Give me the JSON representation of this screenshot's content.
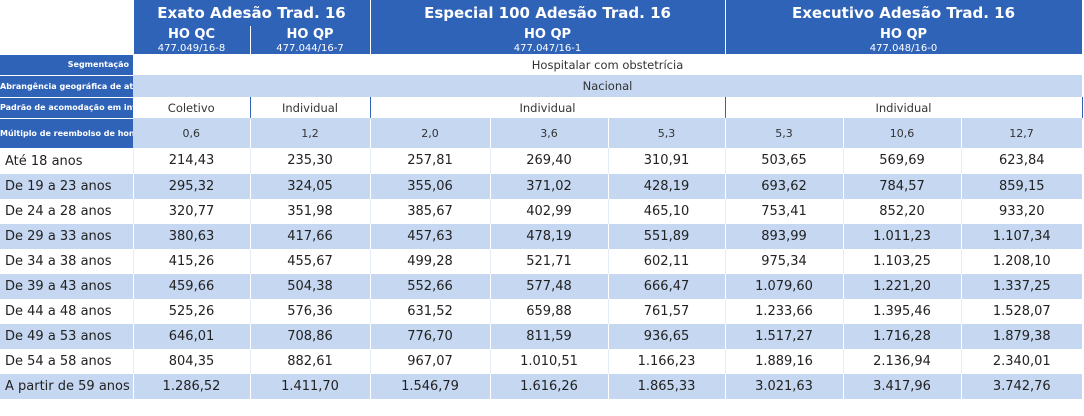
{
  "plans": [
    {
      "name": "Exato Adesão Trad. 16",
      "accommodations": [
        "HO QC",
        "HO QP"
      ],
      "codes": [
        "477.049/16-8",
        "477.044/16-7"
      ]
    },
    {
      "name": "Especial 100 Adesão Trad. 16",
      "accommodation": "HO QP",
      "code": "477.047/16-1"
    },
    {
      "name": "Executivo Adesão Trad. 16",
      "accommodation": "HO QP",
      "code": "477.048/16-0"
    }
  ],
  "labels": {
    "segmentation": "Segmentação",
    "coverage": "Abrangência geográfica de atendimento",
    "accommodation_std": "Padrão de acomodação em internação",
    "multiple": "Múltiplo de reembolso de honorários médicos (beneficiário internado)"
  },
  "segmentation_value": "Hospitalar com obstetrícia",
  "coverage_value": "Nacional",
  "accommodation_values": [
    "Coletivo",
    "Individual",
    "Individual",
    "Individual"
  ],
  "multiples": [
    "0,6",
    "1,2",
    "2,0",
    "3,6",
    "5,3",
    "5,3",
    "10,6",
    "12,7"
  ],
  "rows": [
    {
      "age": "Até 18 anos",
      "values": [
        "214,43",
        "235,30",
        "257,81",
        "269,40",
        "310,91",
        "503,65",
        "569,69",
        "623,84"
      ]
    },
    {
      "age": "De 19 a 23 anos",
      "values": [
        "295,32",
        "324,05",
        "355,06",
        "371,02",
        "428,19",
        "693,62",
        "784,57",
        "859,15"
      ]
    },
    {
      "age": "De 24 a 28 anos",
      "values": [
        "320,77",
        "351,98",
        "385,67",
        "402,99",
        "465,10",
        "753,41",
        "852,20",
        "933,20"
      ]
    },
    {
      "age": "De 29 a 33 anos",
      "values": [
        "380,63",
        "417,66",
        "457,63",
        "478,19",
        "551,89",
        "893,99",
        "1.011,23",
        "1.107,34"
      ]
    },
    {
      "age": "De 34 a 38 anos",
      "values": [
        "415,26",
        "455,67",
        "499,28",
        "521,71",
        "602,11",
        "975,34",
        "1.103,25",
        "1.208,10"
      ]
    },
    {
      "age": "De 39 a 43 anos",
      "values": [
        "459,66",
        "504,38",
        "552,66",
        "577,48",
        "666,47",
        "1.079,60",
        "1.221,20",
        "1.337,25"
      ]
    },
    {
      "age": "De 44 a 48 anos",
      "values": [
        "525,26",
        "576,36",
        "631,52",
        "659,88",
        "761,57",
        "1.233,66",
        "1.395,46",
        "1.528,07"
      ]
    },
    {
      "age": "De 49 a 53 anos",
      "values": [
        "646,01",
        "708,86",
        "776,70",
        "811,59",
        "936,65",
        "1.517,27",
        "1.716,28",
        "1.879,38"
      ]
    },
    {
      "age": "De 54 a 58 anos",
      "values": [
        "804,35",
        "882,61",
        "967,07",
        "1.010,51",
        "1.166,23",
        "1.889,16",
        "2.136,94",
        "2.340,01"
      ]
    },
    {
      "age": "A partir de 59 anos",
      "values": [
        "1.286,52",
        "1.411,70",
        "1.546,79",
        "1.616,26",
        "1.865,33",
        "3.021,63",
        "3.417,96",
        "3.742,76"
      ]
    }
  ],
  "colors": {
    "header_blue": "#2f63b8",
    "band_light": "#c5d7f1",
    "text": "#222222"
  }
}
